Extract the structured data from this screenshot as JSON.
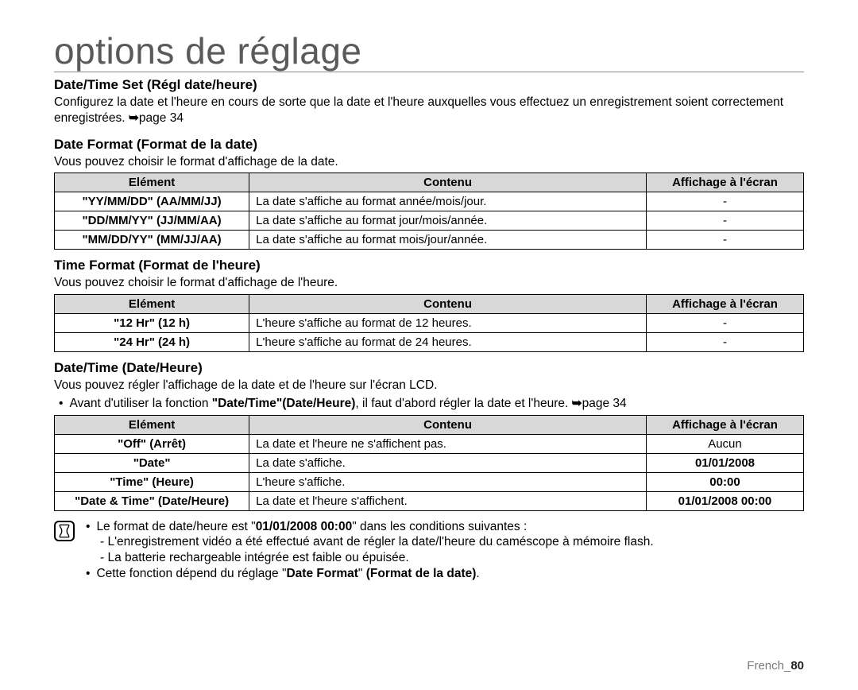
{
  "page": {
    "title": "options de réglage",
    "footer_prefix": "French_",
    "footer_page": "80"
  },
  "sections": {
    "datetime_set": {
      "heading": "Date/Time Set (Régl date/heure)",
      "desc_before": "Configurez la date et l'heure en cours de sorte que la date et l'heure auxquelles vous effectuez un enregistrement soient correctement enregistrées. ",
      "page_ref": "page 34"
    },
    "date_format": {
      "heading": "Date Format (Format de la date)",
      "desc": "Vous pouvez choisir le format d'affichage de la date."
    },
    "time_format": {
      "heading": "Time Format (Format de l'heure)",
      "desc": "Vous pouvez choisir le format d'affichage de l'heure."
    },
    "date_time_disp": {
      "heading": "Date/Time (Date/Heure)",
      "desc": "Vous pouvez régler l'affichage de la date et de l'heure sur l'écran LCD.",
      "bullet_before": "Avant d'utiliser la fonction ",
      "bullet_bold": "\"Date/Time\"(Date/Heure)",
      "bullet_after": ", il faut d'abord régler la date et l'heure. ",
      "bullet_page_ref": "page 34"
    }
  },
  "table_headers": {
    "elem": "Elément",
    "content": "Contenu",
    "display": "Affichage à l'écran"
  },
  "tables": {
    "date_format": {
      "col_widths": [
        "26%",
        "53%",
        "21%"
      ],
      "rows": [
        {
          "elem": "\"YY/MM/DD\" (AA/MM/JJ)",
          "content": "La date s'affiche au format année/mois/jour.",
          "disp": "-",
          "disp_bold": false
        },
        {
          "elem": "\"DD/MM/YY\" (JJ/MM/AA)",
          "content": "La date s'affiche au format jour/mois/année.",
          "disp": "-",
          "disp_bold": false
        },
        {
          "elem": "\"MM/DD/YY\" (MM/JJ/AA)",
          "content": "La date s'affiche au format mois/jour/année.",
          "disp": "-",
          "disp_bold": false
        }
      ]
    },
    "time_format": {
      "col_widths": [
        "26%",
        "53%",
        "21%"
      ],
      "rows": [
        {
          "elem": "\"12 Hr\" (12 h)",
          "content": "L'heure s'affiche au format de 12 heures.",
          "disp": "-",
          "disp_bold": false
        },
        {
          "elem": "\"24 Hr\" (24 h)",
          "content": "L'heure s'affiche au format de 24 heures.",
          "disp": "-",
          "disp_bold": false
        }
      ]
    },
    "date_time_disp": {
      "col_widths": [
        "26%",
        "53%",
        "21%"
      ],
      "rows": [
        {
          "elem": "\"Off\" (Arrêt)",
          "content": "La date et l'heure ne s'affichent pas.",
          "disp": "Aucun",
          "disp_bold": false
        },
        {
          "elem": "\"Date\"",
          "content": "La date s'affiche.",
          "disp": "01/01/2008",
          "disp_bold": true
        },
        {
          "elem": "\"Time\" (Heure)",
          "content": "L'heure s'affiche.",
          "disp": "00:00",
          "disp_bold": true
        },
        {
          "elem": "\"Date & Time\" (Date/Heure)",
          "content": "La date et l'heure s'affichent.",
          "disp": "01/01/2008 00:00",
          "disp_bold": true
        }
      ]
    }
  },
  "notes": {
    "n1_before": "Le format de date/heure est \"",
    "n1_bold": "01/01/2008 00:00",
    "n1_after": "\" dans les conditions suivantes :",
    "n1_sub1": "- L'enregistrement vidéo a été effectué avant de régler la date/l'heure du caméscope à mémoire flash.",
    "n1_sub2": "- La batterie rechargeable intégrée est faible ou épuisée.",
    "n2_before": "Cette fonction dépend du réglage \"",
    "n2_bold1": "Date Format",
    "n2_mid": "\" ",
    "n2_bold2": "(Format de la date)",
    "n2_after": "."
  }
}
